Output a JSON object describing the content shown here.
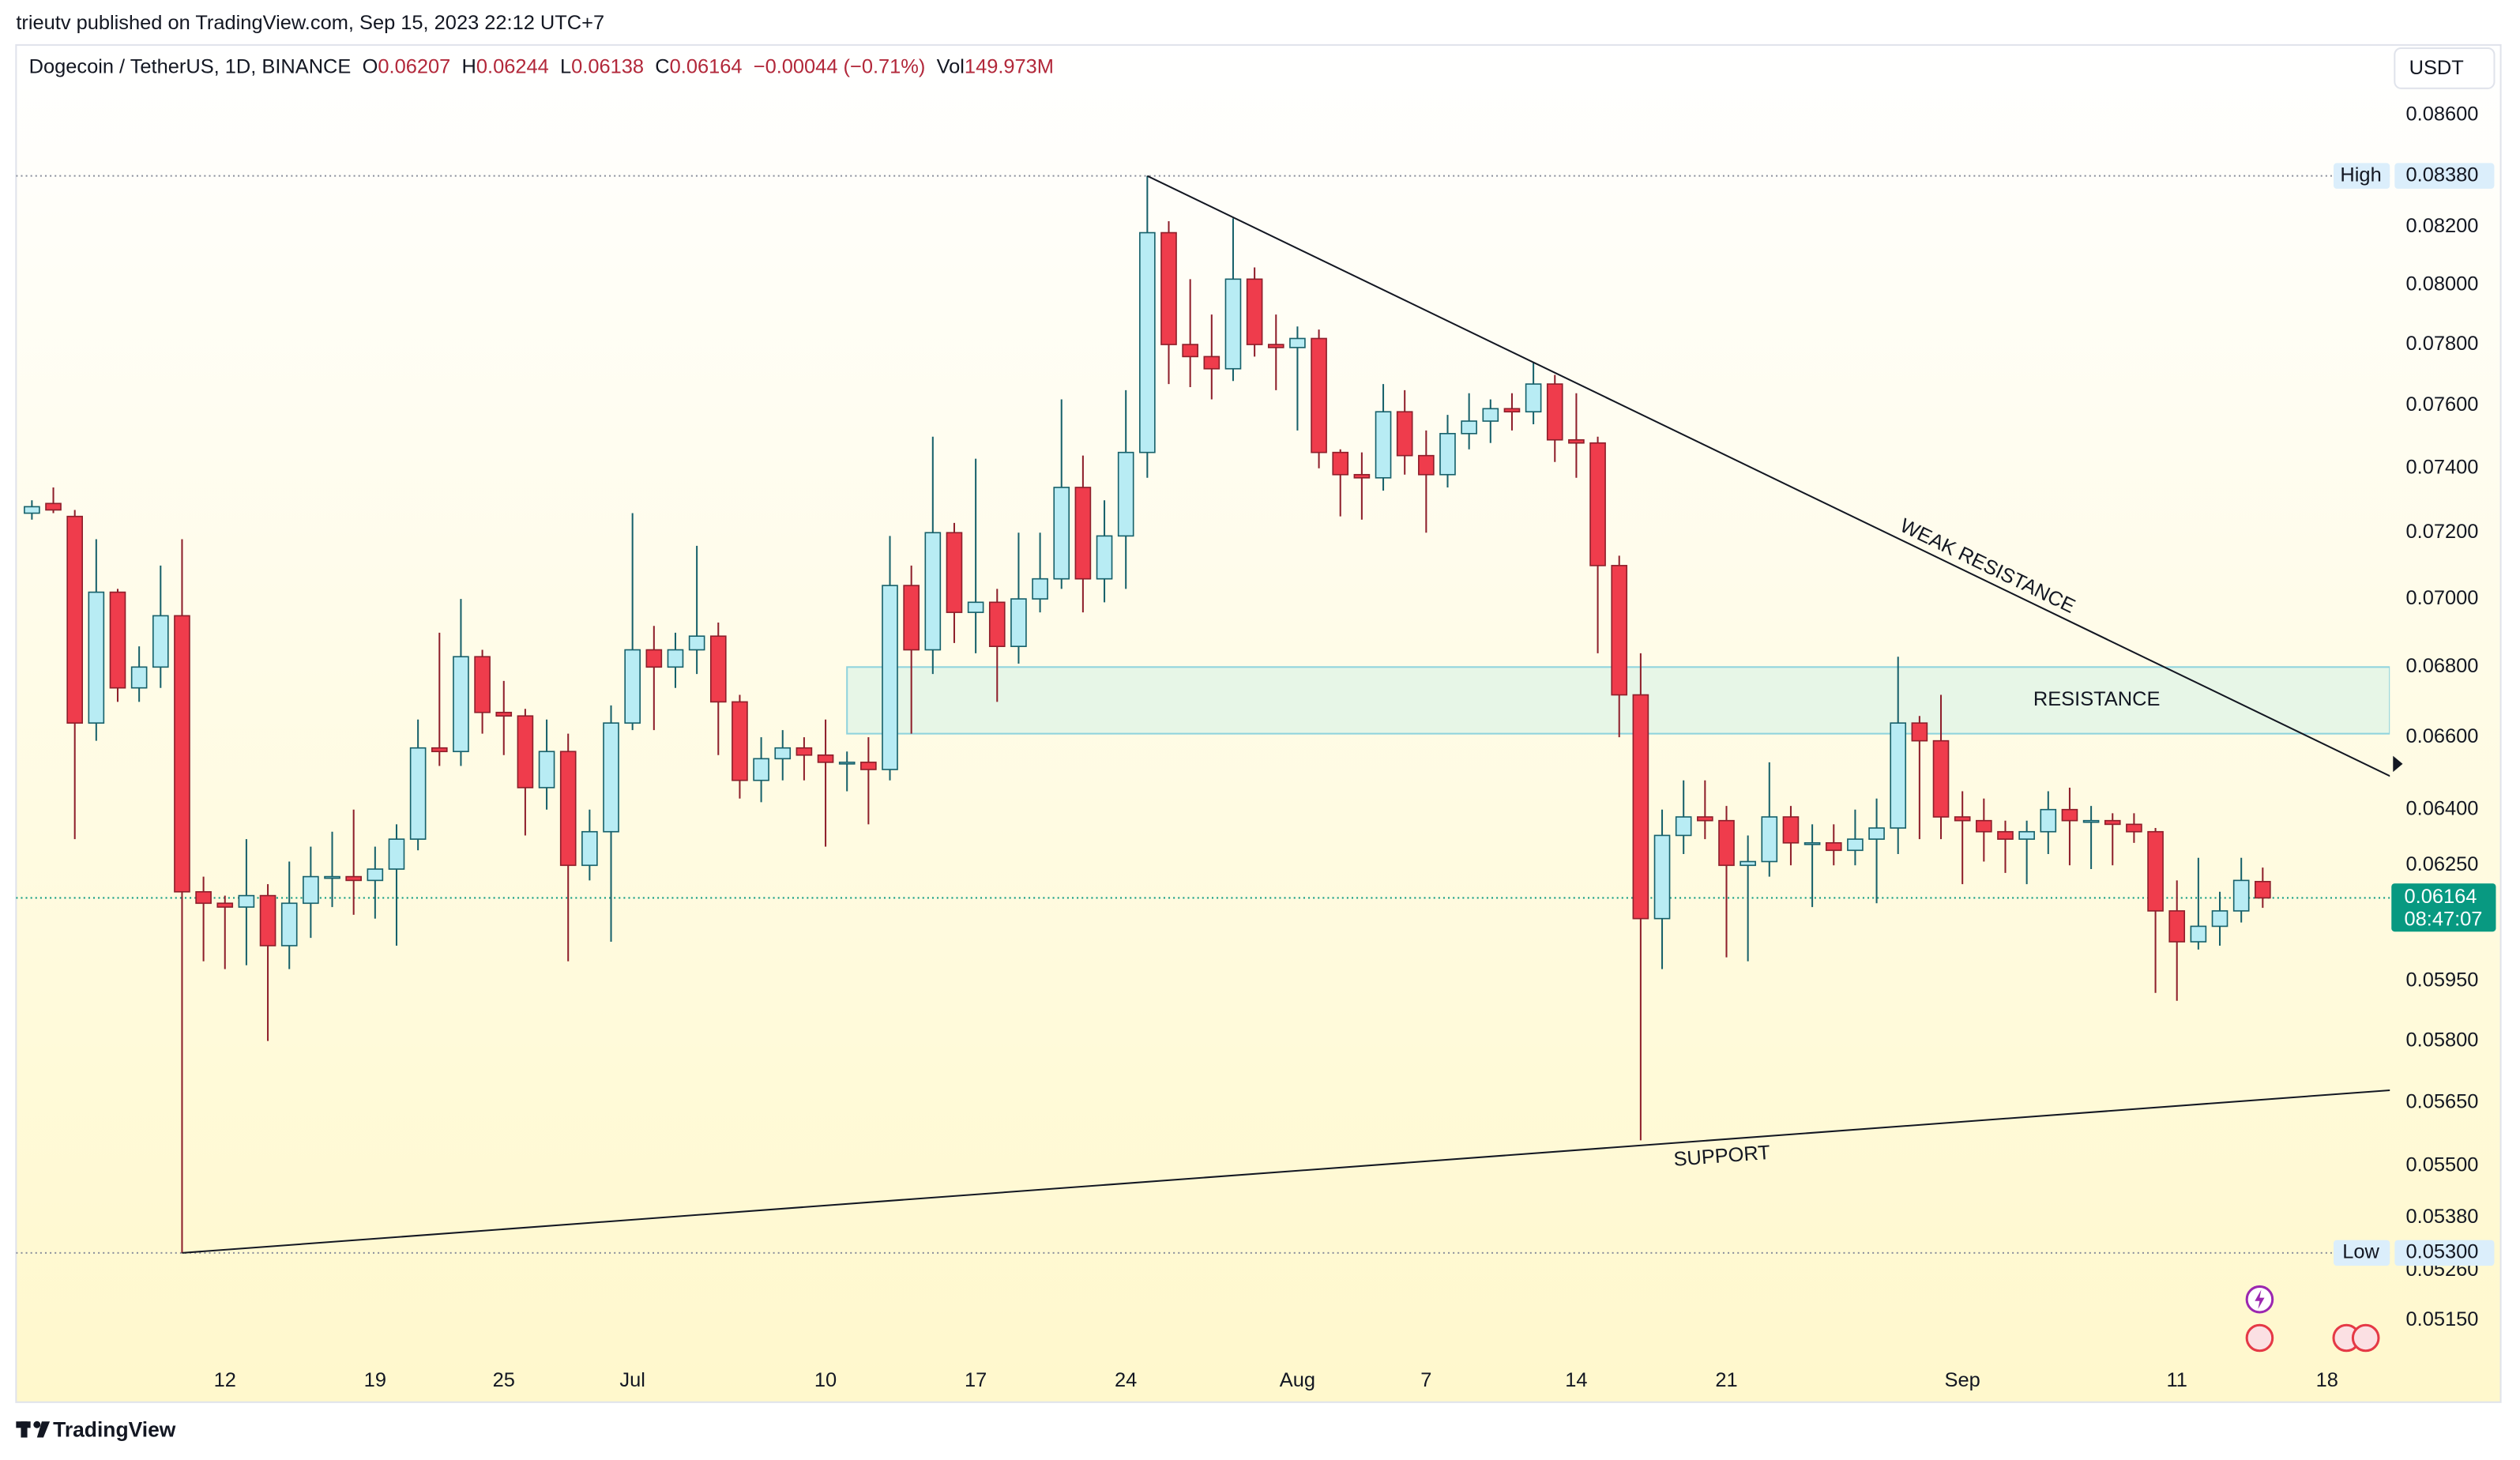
{
  "header": {
    "publisher": "trieutv published on TradingView.com, Sep 15, 2023 22:12 UTC+7",
    "currency": "USDT",
    "brand": "TradingView"
  },
  "chart_data": {
    "type": "candlestick",
    "title": "Dogecoin / TetherUS, 1D, BINANCE",
    "legend": {
      "items": [
        {
          "label": "O",
          "value": "0.06207"
        },
        {
          "label": "H",
          "value": "0.06244"
        },
        {
          "label": "L",
          "value": "0.06138"
        },
        {
          "label": "C",
          "value": "0.06164"
        }
      ],
      "change": "−0.00044 (−0.71%)",
      "volume": {
        "label": "Vol",
        "value": "149.973M"
      }
    },
    "x": [
      "06-03",
      "06-04",
      "06-05",
      "06-06",
      "06-07",
      "06-08",
      "06-09",
      "06-10",
      "06-11",
      "06-12",
      "06-13",
      "06-14",
      "06-15",
      "06-16",
      "06-17",
      "06-18",
      "06-19",
      "06-20",
      "06-21",
      "06-22",
      "06-23",
      "06-24",
      "06-25",
      "06-26",
      "06-27",
      "06-28",
      "06-29",
      "06-30",
      "07-01",
      "07-02",
      "07-03",
      "07-04",
      "07-05",
      "07-06",
      "07-07",
      "07-08",
      "07-09",
      "07-10",
      "07-11",
      "07-12",
      "07-13",
      "07-14",
      "07-15",
      "07-16",
      "07-17",
      "07-18",
      "07-19",
      "07-20",
      "07-21",
      "07-22",
      "07-23",
      "07-24",
      "07-25",
      "07-26",
      "07-27",
      "07-28",
      "07-29",
      "07-30",
      "07-31",
      "08-01",
      "08-02",
      "08-03",
      "08-04",
      "08-05",
      "08-06",
      "08-07",
      "08-08",
      "08-09",
      "08-10",
      "08-11",
      "08-12",
      "08-13",
      "08-14",
      "08-15",
      "08-16",
      "08-17",
      "08-18",
      "08-19",
      "08-20",
      "08-21",
      "08-22",
      "08-23",
      "08-24",
      "08-25",
      "08-26",
      "08-27",
      "08-28",
      "08-29",
      "08-30",
      "08-31",
      "09-01",
      "09-02",
      "09-03",
      "09-04",
      "09-05",
      "09-06",
      "09-07",
      "09-08",
      "09-09",
      "09-10",
      "09-11",
      "09-12",
      "09-13",
      "09-14",
      "09-15"
    ],
    "open": [
      0.0726,
      0.0729,
      0.0725,
      0.0664,
      0.0702,
      0.0674,
      0.068,
      0.0695,
      0.0618,
      0.0615,
      0.0614,
      0.0617,
      0.0604,
      0.0615,
      0.0622,
      0.0622,
      0.0621,
      0.0624,
      0.0632,
      0.0657,
      0.0656,
      0.0683,
      0.0667,
      0.0666,
      0.0646,
      0.0656,
      0.0625,
      0.0634,
      0.0664,
      0.0685,
      0.068,
      0.0685,
      0.0689,
      0.067,
      0.0648,
      0.0654,
      0.0657,
      0.0655,
      0.0653,
      0.0653,
      0.0651,
      0.0704,
      0.0685,
      0.072,
      0.0696,
      0.0699,
      0.0686,
      0.07,
      0.0706,
      0.0734,
      0.0706,
      0.0719,
      0.0745,
      0.0818,
      0.078,
      0.0776,
      0.0772,
      0.0802,
      0.078,
      0.0779,
      0.0782,
      0.0745,
      0.0738,
      0.0737,
      0.0758,
      0.0744,
      0.0738,
      0.0751,
      0.0755,
      0.0759,
      0.0758,
      0.0767,
      0.0749,
      0.0748,
      0.071,
      0.0672,
      0.0611,
      0.0633,
      0.0638,
      0.0637,
      0.0625,
      0.0626,
      0.0638,
      0.0631,
      0.0631,
      0.0629,
      0.0632,
      0.0635,
      0.0664,
      0.0659,
      0.0638,
      0.0637,
      0.0634,
      0.0632,
      0.0634,
      0.064,
      0.0637,
      0.0637,
      0.0636,
      0.0634,
      0.0613,
      0.0605,
      0.0609,
      0.0613,
      0.06207
    ],
    "high": [
      0.073,
      0.0734,
      0.0727,
      0.0718,
      0.0703,
      0.0686,
      0.071,
      0.0718,
      0.0622,
      0.0617,
      0.0632,
      0.062,
      0.0626,
      0.063,
      0.0634,
      0.064,
      0.063,
      0.0636,
      0.0665,
      0.069,
      0.07,
      0.0685,
      0.0676,
      0.0668,
      0.0665,
      0.0661,
      0.064,
      0.0669,
      0.0726,
      0.0692,
      0.069,
      0.0716,
      0.0693,
      0.0672,
      0.066,
      0.0662,
      0.066,
      0.0665,
      0.0656,
      0.066,
      0.0719,
      0.071,
      0.075,
      0.0723,
      0.0743,
      0.0703,
      0.072,
      0.072,
      0.0762,
      0.0744,
      0.073,
      0.0765,
      0.0838,
      0.0822,
      0.0802,
      0.079,
      0.0823,
      0.0806,
      0.079,
      0.0786,
      0.0785,
      0.0746,
      0.0745,
      0.0767,
      0.0765,
      0.0752,
      0.0757,
      0.0764,
      0.0762,
      0.0764,
      0.0774,
      0.077,
      0.0764,
      0.075,
      0.0713,
      0.0684,
      0.064,
      0.0648,
      0.0648,
      0.0641,
      0.0633,
      0.0653,
      0.0641,
      0.0636,
      0.0636,
      0.064,
      0.0643,
      0.0683,
      0.0666,
      0.0672,
      0.0645,
      0.0643,
      0.0637,
      0.0637,
      0.0645,
      0.0646,
      0.0641,
      0.0639,
      0.0639,
      0.0635,
      0.0621,
      0.0627,
      0.0618,
      0.0627,
      0.06244
    ],
    "low": [
      0.0724,
      0.0726,
      0.0632,
      0.0659,
      0.067,
      0.067,
      0.0674,
      0.053,
      0.06,
      0.0598,
      0.0599,
      0.058,
      0.0598,
      0.0606,
      0.0614,
      0.0612,
      0.0611,
      0.0604,
      0.0629,
      0.0652,
      0.0652,
      0.0661,
      0.0655,
      0.0633,
      0.064,
      0.06,
      0.0621,
      0.0605,
      0.0662,
      0.0662,
      0.0674,
      0.0678,
      0.0655,
      0.0643,
      0.0642,
      0.0648,
      0.0648,
      0.063,
      0.0645,
      0.0636,
      0.0648,
      0.0661,
      0.0678,
      0.0687,
      0.0684,
      0.067,
      0.0681,
      0.0696,
      0.0703,
      0.0696,
      0.0699,
      0.0703,
      0.0737,
      0.0767,
      0.0766,
      0.0762,
      0.0768,
      0.0776,
      0.0765,
      0.0752,
      0.074,
      0.0725,
      0.0724,
      0.0733,
      0.0738,
      0.072,
      0.0734,
      0.0746,
      0.0748,
      0.0752,
      0.0754,
      0.0742,
      0.0737,
      0.0684,
      0.066,
      0.0556,
      0.0598,
      0.0628,
      0.0632,
      0.0601,
      0.06,
      0.0622,
      0.0625,
      0.0614,
      0.0625,
      0.0625,
      0.0615,
      0.0628,
      0.0632,
      0.0632,
      0.062,
      0.0626,
      0.0623,
      0.062,
      0.0628,
      0.0625,
      0.0624,
      0.0625,
      0.0631,
      0.0592,
      0.059,
      0.0603,
      0.0604,
      0.061,
      0.06138
    ],
    "close": [
      0.0728,
      0.0727,
      0.0664,
      0.0702,
      0.0674,
      0.068,
      0.0695,
      0.0618,
      0.0615,
      0.0614,
      0.0617,
      0.0604,
      0.0615,
      0.0622,
      0.0622,
      0.0621,
      0.0624,
      0.0632,
      0.0657,
      0.0656,
      0.0683,
      0.0667,
      0.0666,
      0.0646,
      0.0656,
      0.0625,
      0.0634,
      0.0664,
      0.0685,
      0.068,
      0.0685,
      0.0689,
      0.067,
      0.0648,
      0.0654,
      0.0657,
      0.0655,
      0.0653,
      0.0653,
      0.0651,
      0.0704,
      0.0685,
      0.072,
      0.0696,
      0.0699,
      0.0686,
      0.07,
      0.0706,
      0.0734,
      0.0706,
      0.0719,
      0.0745,
      0.0818,
      0.078,
      0.0776,
      0.0772,
      0.0802,
      0.078,
      0.0779,
      0.0782,
      0.0745,
      0.0738,
      0.0737,
      0.0758,
      0.0744,
      0.0738,
      0.0751,
      0.0755,
      0.0759,
      0.0758,
      0.0767,
      0.0749,
      0.0748,
      0.071,
      0.0672,
      0.0611,
      0.0633,
      0.0638,
      0.0637,
      0.0625,
      0.0626,
      0.0638,
      0.0631,
      0.0631,
      0.0629,
      0.0632,
      0.0635,
      0.0664,
      0.0659,
      0.0638,
      0.0637,
      0.0634,
      0.0632,
      0.0634,
      0.064,
      0.0637,
      0.0637,
      0.0636,
      0.0634,
      0.0613,
      0.0605,
      0.0609,
      0.0613,
      0.0621,
      0.06164
    ],
    "colors": {
      "up": "#b8ecf4",
      "up_line": "#17616b",
      "down": "#ef3c4c",
      "down_line": "#8e1f2b"
    },
    "log_scale": true,
    "xlim": [
      "06-02",
      "09-21"
    ],
    "xticks": [
      {
        "value": "06-12",
        "label": "12"
      },
      {
        "value": "06-19",
        "label": "19"
      },
      {
        "value": "06-25",
        "label": "25"
      },
      {
        "value": "07-01",
        "label": "Jul"
      },
      {
        "value": "07-10",
        "label": "10"
      },
      {
        "value": "07-17",
        "label": "17"
      },
      {
        "value": "07-24",
        "label": "24"
      },
      {
        "value": "08-01",
        "label": "Aug"
      },
      {
        "value": "08-07",
        "label": "7"
      },
      {
        "value": "08-14",
        "label": "14"
      },
      {
        "value": "08-21",
        "label": "21"
      },
      {
        "value": "09-01",
        "label": "Sep"
      },
      {
        "value": "09-11",
        "label": "11"
      },
      {
        "value": "09-18",
        "label": "18"
      }
    ],
    "ylim": [
      0.0507,
      0.0886
    ],
    "yticks": [
      {
        "value": 0.086,
        "label": "0.08600"
      },
      {
        "value": 0.082,
        "label": "0.08200"
      },
      {
        "value": 0.08,
        "label": "0.08000"
      },
      {
        "value": 0.078,
        "label": "0.07800"
      },
      {
        "value": 0.076,
        "label": "0.07600"
      },
      {
        "value": 0.074,
        "label": "0.07400"
      },
      {
        "value": 0.072,
        "label": "0.07200"
      },
      {
        "value": 0.07,
        "label": "0.07000"
      },
      {
        "value": 0.068,
        "label": "0.06800"
      },
      {
        "value": 0.066,
        "label": "0.06600"
      },
      {
        "value": 0.064,
        "label": "0.06400"
      },
      {
        "value": 0.0625,
        "label": "0.06250"
      },
      {
        "value": 0.0595,
        "label": "0.05950"
      },
      {
        "value": 0.058,
        "label": "0.05800"
      },
      {
        "value": 0.0565,
        "label": "0.05650"
      },
      {
        "value": 0.055,
        "label": "0.05500"
      },
      {
        "value": 0.0538,
        "label": "0.05380"
      },
      {
        "value": 0.0526,
        "label": "0.05260"
      },
      {
        "value": 0.0515,
        "label": "0.05150"
      }
    ],
    "markers": [
      {
        "name": "High",
        "value": 0.0838,
        "value_label": "0.08380"
      },
      {
        "name": "Low",
        "value": 0.053,
        "value_label": "0.05300"
      }
    ],
    "last_price": {
      "value": 0.06164,
      "value_label": "0.06164",
      "countdown": "08:47:07",
      "color": "#089981"
    },
    "annotations": [
      {
        "type": "line",
        "label": "WEAK RESISTANCE",
        "from": [
          "07-25",
          0.0838
        ],
        "to": [
          "09-21",
          0.0649
        ]
      },
      {
        "type": "line",
        "label": "SUPPORT",
        "from": [
          "06-10",
          0.053
        ],
        "to": [
          "09-21",
          0.0568
        ]
      },
      {
        "type": "zone",
        "label": "RESISTANCE",
        "from": [
          "07-11",
          0.068
        ],
        "to": [
          "09-21",
          0.0661
        ],
        "color": "#e3f5e6"
      }
    ]
  }
}
